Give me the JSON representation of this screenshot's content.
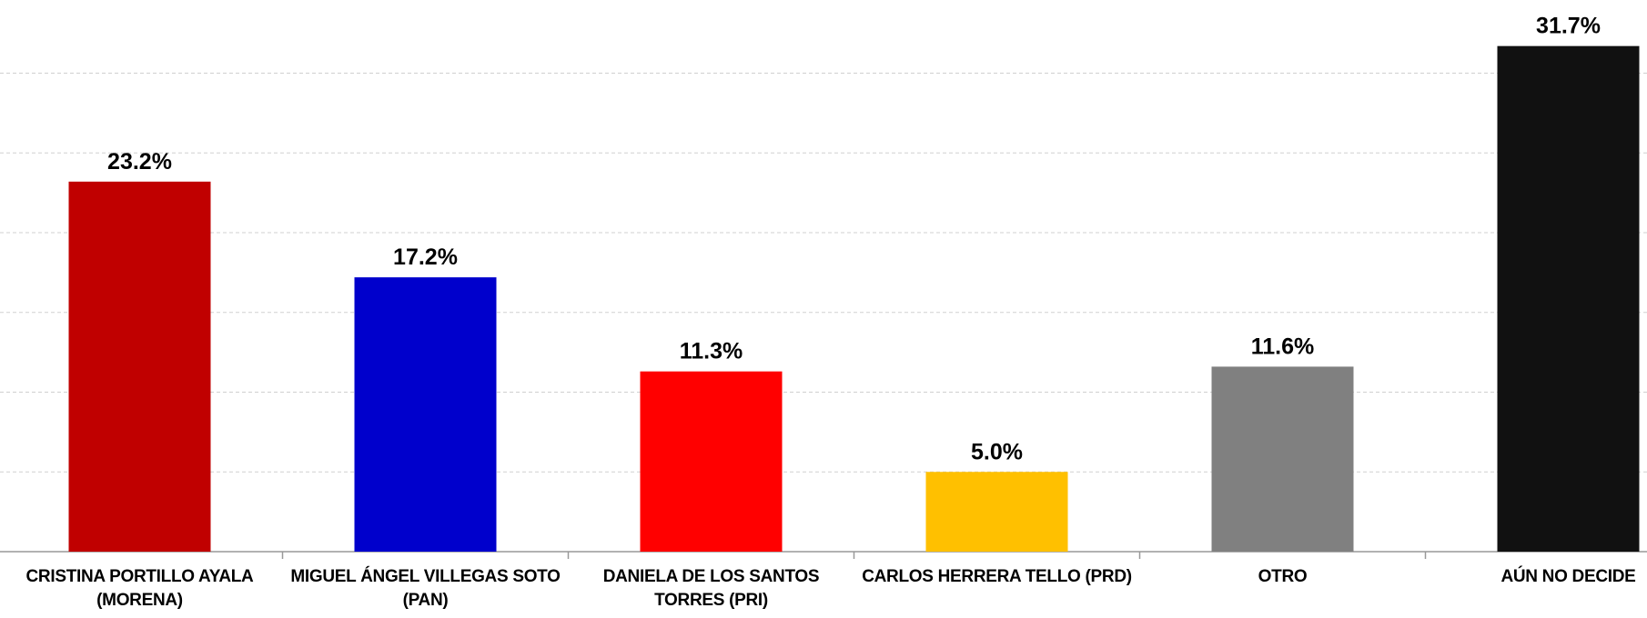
{
  "chart_data": {
    "type": "bar",
    "categories": [
      "CRISTINA PORTILLO AYALA (MORENA)",
      "MIGUEL ÁNGEL VILLEGAS SOTO (PAN)",
      "DANIELA DE LOS SANTOS TORRES (PRI)",
      "CARLOS HERRERA TELLO (PRD)",
      "OTRO",
      "AÚN NO DECIDE"
    ],
    "values": [
      23.2,
      17.2,
      11.3,
      5.0,
      11.6,
      31.7
    ],
    "value_labels": [
      "23.2%",
      "17.2%",
      "11.3%",
      "5.0%",
      "11.6%",
      "31.7%"
    ],
    "colors": [
      "#c00000",
      "#0000cc",
      "#ff0000",
      "#ffc000",
      "#808080",
      "#111111"
    ],
    "ylim": [
      0,
      35
    ],
    "yticks": [
      0,
      5,
      10,
      15,
      20,
      25,
      30
    ],
    "grid": true
  }
}
